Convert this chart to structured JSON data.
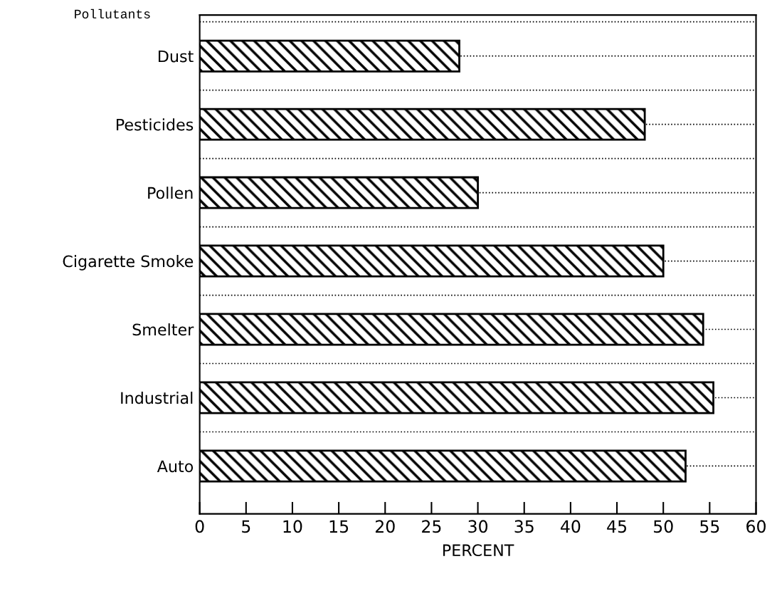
{
  "chart_data": {
    "type": "bar",
    "orientation": "horizontal",
    "ylabel": "Pollutants",
    "xlabel": "PERCENT",
    "categories": [
      "Dust",
      "Pesticides",
      "Pollen",
      "Cigarette Smoke",
      "Smelter",
      "Industrial",
      "Auto"
    ],
    "values": [
      28,
      48,
      30,
      50,
      54.3,
      55.4,
      52.4
    ],
    "color": "#000000",
    "xlim": [
      0,
      60
    ],
    "xticks": [
      0,
      5,
      10,
      15,
      20,
      25,
      30,
      35,
      40,
      45,
      50,
      55,
      60
    ],
    "grid": "y",
    "line_style": "dotted"
  }
}
